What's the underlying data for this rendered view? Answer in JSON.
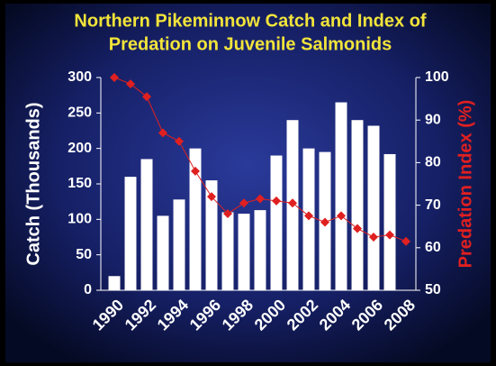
{
  "chart_data": {
    "type": "bar",
    "title": [
      "Northern Pikeminnow Catch and Index of",
      "Predation on Juvenile Salmonids"
    ],
    "y_label": "Catch (Thousands)",
    "y2_label": "Predation Index (%)",
    "categories": [
      "1990",
      null,
      "1992",
      null,
      "1994",
      null,
      "1996",
      null,
      "1998",
      null,
      "2000",
      null,
      "2002",
      null,
      "2004",
      null,
      "2006",
      null,
      "2008"
    ],
    "series": [
      {
        "type": "bar",
        "color": "#ffffff",
        "values": [
          20,
          160,
          185,
          105,
          128,
          200,
          155,
          110,
          108,
          113,
          190,
          240,
          200,
          195,
          265,
          240,
          232,
          192,
          null
        ]
      },
      {
        "type": "line",
        "axis": "y2",
        "color": "#e02020",
        "values": [
          100,
          98.5,
          95.5,
          87,
          85,
          78,
          72,
          68,
          70.5,
          71.5,
          71,
          70.5,
          67.5,
          66,
          67.5,
          64.5,
          62.5,
          63,
          61.5
        ]
      }
    ],
    "ylim": [
      0,
      300
    ],
    "yticks": [
      0,
      50,
      100,
      150,
      200,
      250,
      300
    ],
    "y2lim": [
      50,
      100
    ],
    "y2ticks": [
      50,
      60,
      70,
      80,
      90,
      100
    ]
  }
}
